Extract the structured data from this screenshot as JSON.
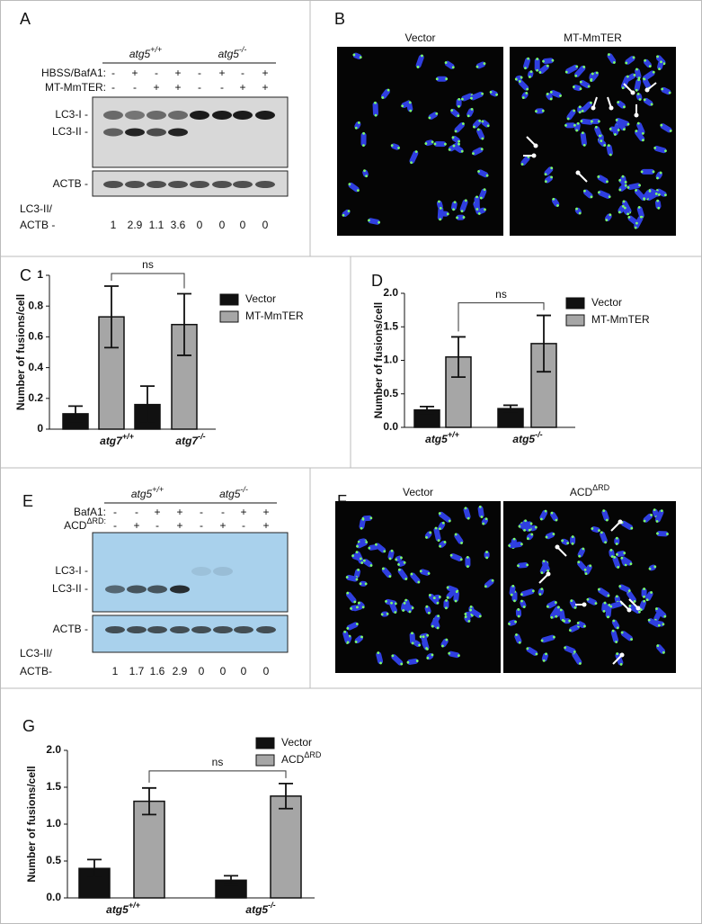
{
  "panels": {
    "A": {
      "label": "A",
      "groups": [
        "atg5+/+",
        "atg5-/-"
      ],
      "rows": [
        {
          "name": "HBSS/BafA1:",
          "signs": [
            "-",
            "+",
            "-",
            "+",
            "-",
            "+",
            "-",
            "+"
          ]
        },
        {
          "name": "MT-MmTER:",
          "signs": [
            "-",
            "-",
            "+",
            "+",
            "-",
            "-",
            "+",
            "+"
          ]
        }
      ],
      "bands": [
        "LC3-I  -",
        "LC3-II -",
        "ACTB -"
      ],
      "ratio_label": [
        "LC3-II/",
        "ACTB -"
      ],
      "ratios": [
        1,
        2.9,
        1.1,
        3.6,
        0,
        0,
        0,
        0
      ]
    },
    "B": {
      "label": "B",
      "titles": [
        "Vector",
        "MT-MmTER"
      ]
    },
    "E": {
      "label": "E",
      "groups": [
        "atg5+/+",
        "atg5-/-"
      ],
      "rows": [
        {
          "name": "BafA1:",
          "signs": [
            "-",
            "-",
            "+",
            "+",
            "-",
            "-",
            "+",
            "+"
          ]
        },
        {
          "name": "ACDΔRD:",
          "signs": [
            "-",
            "+",
            "-",
            "+",
            "-",
            "+",
            "-",
            "+"
          ]
        }
      ],
      "bands": [
        "LC3-I  -",
        "LC3-II -",
        "ACTB -"
      ],
      "ratio_label": [
        "LC3-II/",
        "ACTB-"
      ],
      "ratios": [
        1,
        1.7,
        1.6,
        2.9,
        0,
        0,
        0,
        0
      ]
    },
    "F": {
      "label": "F",
      "titles": [
        "Vector",
        "ACDΔRD"
      ]
    }
  },
  "chart_data": [
    {
      "type": "bar",
      "panel": "C",
      "y_label": "Number of fusions/cell",
      "categories": [
        "atg7+/+",
        "atg7-/-"
      ],
      "series": [
        {
          "name": "Vector",
          "color": "#111111",
          "values": [
            0.1,
            0.16
          ],
          "errors": [
            0.05,
            0.12
          ]
        },
        {
          "name": "MT-MmTER",
          "color": "#a6a6a6",
          "values": [
            0.73,
            0.68
          ],
          "errors": [
            0.2,
            0.2
          ]
        }
      ],
      "ylim": [
        0,
        1
      ],
      "yticks": [
        0,
        0.2,
        0.4,
        0.6,
        0.8,
        1
      ],
      "annotation": "ns"
    },
    {
      "type": "bar",
      "panel": "D",
      "y_label": "Number of fusions/cell",
      "categories": [
        "atg5+/+",
        "atg5-/-"
      ],
      "series": [
        {
          "name": "Vector",
          "color": "#111111",
          "values": [
            0.26,
            0.28
          ],
          "errors": [
            0.05,
            0.05
          ]
        },
        {
          "name": "MT-MmTER",
          "color": "#a6a6a6",
          "values": [
            1.05,
            1.25
          ],
          "errors": [
            0.3,
            0.42
          ]
        }
      ],
      "ylim": [
        0,
        2
      ],
      "yticks": [
        {
          "value": 0,
          "label": "0.0"
        },
        {
          "value": 0.5,
          "label": "0.5"
        },
        {
          "value": 1,
          "label": "1.0"
        },
        {
          "value": 1.5,
          "label": "1.5"
        },
        {
          "value": 2,
          "label": "2.0"
        }
      ],
      "annotation": "ns"
    },
    {
      "type": "bar",
      "panel": "G",
      "y_label": "Number of fusions/cell",
      "categories": [
        "atg5+/+",
        "atg5-/-"
      ],
      "series": [
        {
          "name": "Vector",
          "color": "#111111",
          "values": [
            0.4,
            0.24
          ],
          "errors": [
            0.12,
            0.06
          ]
        },
        {
          "name": "ACDΔRD",
          "color": "#a6a6a6",
          "values": [
            1.31,
            1.38
          ],
          "errors": [
            0.18,
            0.17
          ]
        }
      ],
      "ylim": [
        0,
        2
      ],
      "yticks": [
        {
          "value": 0,
          "label": "0.0"
        },
        {
          "value": 0.5,
          "label": "0.5"
        },
        {
          "value": 1,
          "label": "1.0"
        },
        {
          "value": 1.5,
          "label": "1.5"
        },
        {
          "value": 2,
          "label": "2.0"
        }
      ],
      "annotation": "ns"
    }
  ]
}
